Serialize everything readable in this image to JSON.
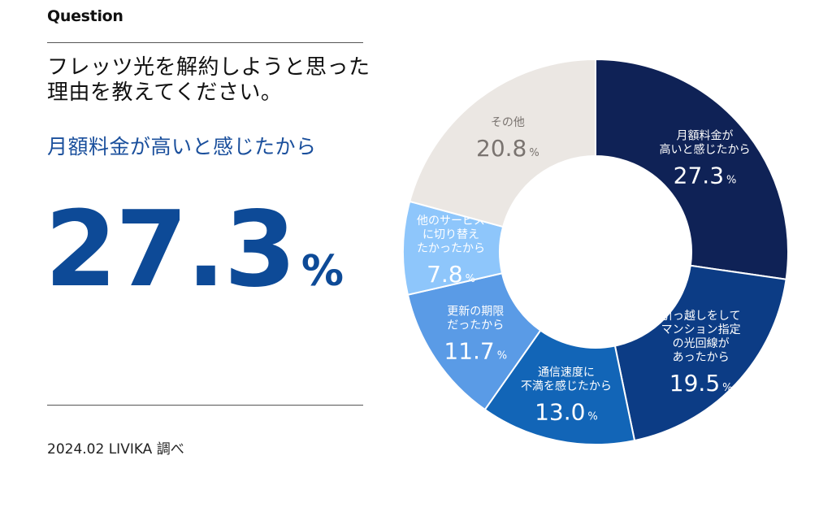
{
  "header": {
    "label": "Question"
  },
  "question": {
    "line1": "フレッツ光を解約しようと思った",
    "line2": "理由を教えてください。"
  },
  "highlight": {
    "answer": "月額料金が高いと感じたから",
    "value": "27.3",
    "unit": "%"
  },
  "source": "2024.02 LIVIKA 調べ",
  "chart_data": {
    "type": "pie",
    "donut": true,
    "start": "12 o'clock, clockwise",
    "unit": "%",
    "slices": [
      {
        "label_lines": [
          "月額料金が",
          "高いと感じたから"
        ],
        "value": 27.3,
        "color": "#0f2256",
        "text_color": "#ffffff"
      },
      {
        "label_lines": [
          "引っ越しをして",
          "マンション指定",
          "の光回線が",
          "あったから"
        ],
        "value": 19.5,
        "color": "#0c3c85",
        "text_color": "#ffffff"
      },
      {
        "label_lines": [
          "通信速度に",
          "不満を感じたから"
        ],
        "value": 13.0,
        "color": "#1265b7",
        "text_color": "#ffffff"
      },
      {
        "label_lines": [
          "更新の期限",
          "だったから"
        ],
        "value": 11.7,
        "color": "#5a9be6",
        "text_color": "#ffffff"
      },
      {
        "label_lines": [
          "他のサービス",
          "に切り替え",
          "たかったから"
        ],
        "value": 7.8,
        "color": "#8ec6fb",
        "text_color": "#ffffff"
      },
      {
        "label_lines": [
          "その他"
        ],
        "value": 20.8,
        "color": "#ebe7e3",
        "text_color": "#7a7470"
      }
    ]
  }
}
